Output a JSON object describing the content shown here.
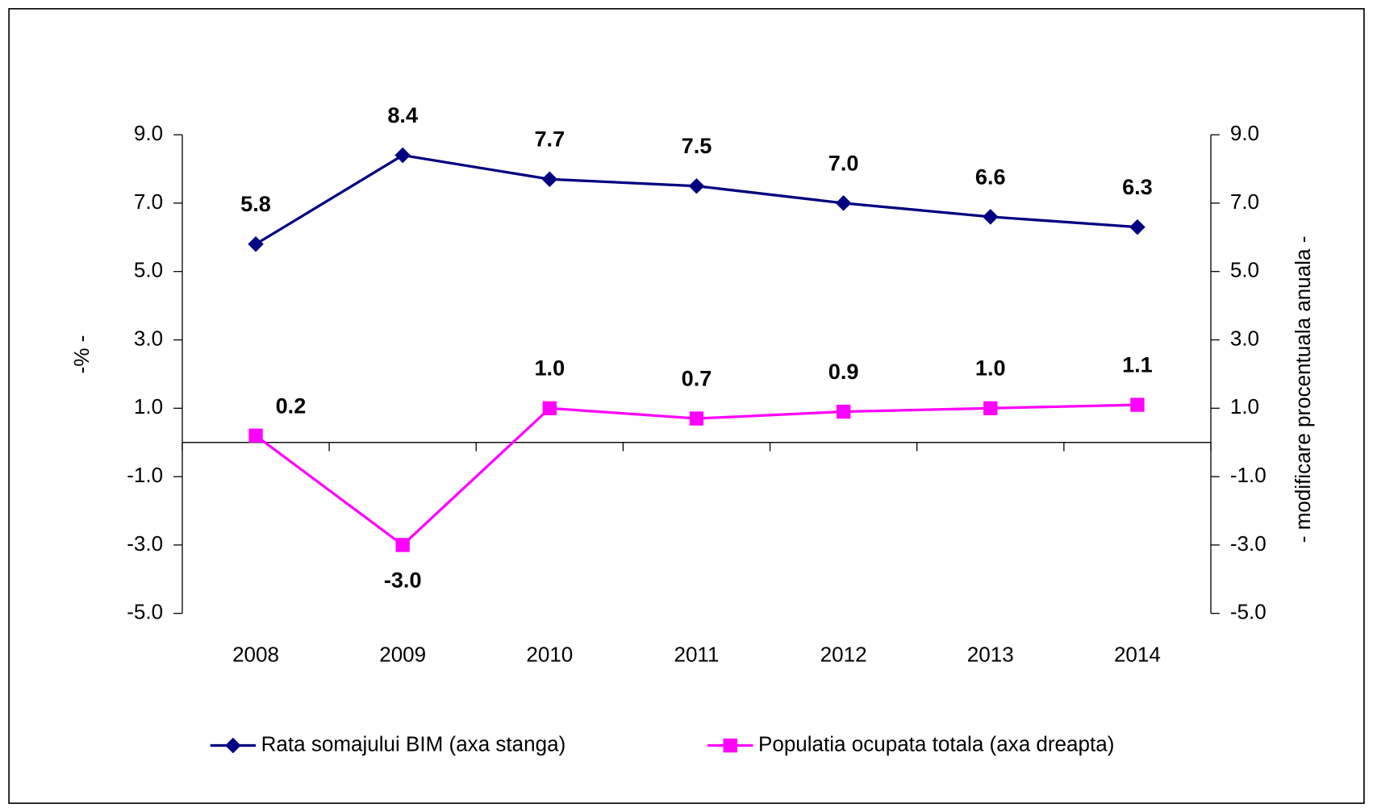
{
  "chart_data": {
    "type": "line",
    "categories": [
      "2008",
      "2009",
      "2010",
      "2011",
      "2012",
      "2013",
      "2014"
    ],
    "series": [
      {
        "name": "Rata somajului BIM (axa stanga)",
        "color": "#000080",
        "marker": "diamond",
        "values": [
          5.8,
          8.4,
          7.7,
          7.5,
          7.0,
          6.6,
          6.3
        ],
        "value_labels": [
          "5.8",
          "8.4",
          "7.7",
          "7.5",
          "7.0",
          "6.6",
          "6.3"
        ]
      },
      {
        "name": "Populatia ocupata totala (axa dreapta)",
        "color": "#ff00ff",
        "marker": "square",
        "axis": "y2",
        "values": [
          0.2,
          -3.0,
          1.0,
          0.7,
          0.9,
          1.0,
          1.1
        ],
        "value_labels": [
          "0.2",
          "-3.0",
          "1.0",
          "0.7",
          "0.9",
          "1.0",
          "1.1"
        ]
      }
    ],
    "ylabel": "-% -",
    "y2label": "- modificare procentuala anuala -",
    "ylim": [
      -5,
      9
    ],
    "yticks": [
      {
        "value": -5,
        "label": "-5.0"
      },
      {
        "value": -3,
        "label": "-3.0"
      },
      {
        "value": -1,
        "label": "-1.0"
      },
      {
        "value": 1,
        "label": "1.0"
      },
      {
        "value": 3,
        "label": "3.0"
      },
      {
        "value": 5,
        "label": "5.0"
      },
      {
        "value": 7,
        "label": "7.0"
      },
      {
        "value": 9,
        "label": "9.0"
      }
    ],
    "y2lim": [
      -5,
      9
    ],
    "y2ticks": [
      {
        "value": -5,
        "label": "-5.0"
      },
      {
        "value": -3,
        "label": "-3.0"
      },
      {
        "value": -1,
        "label": "-1.0"
      },
      {
        "value": 1,
        "label": "1.0"
      },
      {
        "value": 3,
        "label": "3.0"
      },
      {
        "value": 5,
        "label": "5.0"
      },
      {
        "value": 7,
        "label": "7.0"
      },
      {
        "value": 9,
        "label": "9.0"
      }
    ],
    "legend": "bottom"
  }
}
